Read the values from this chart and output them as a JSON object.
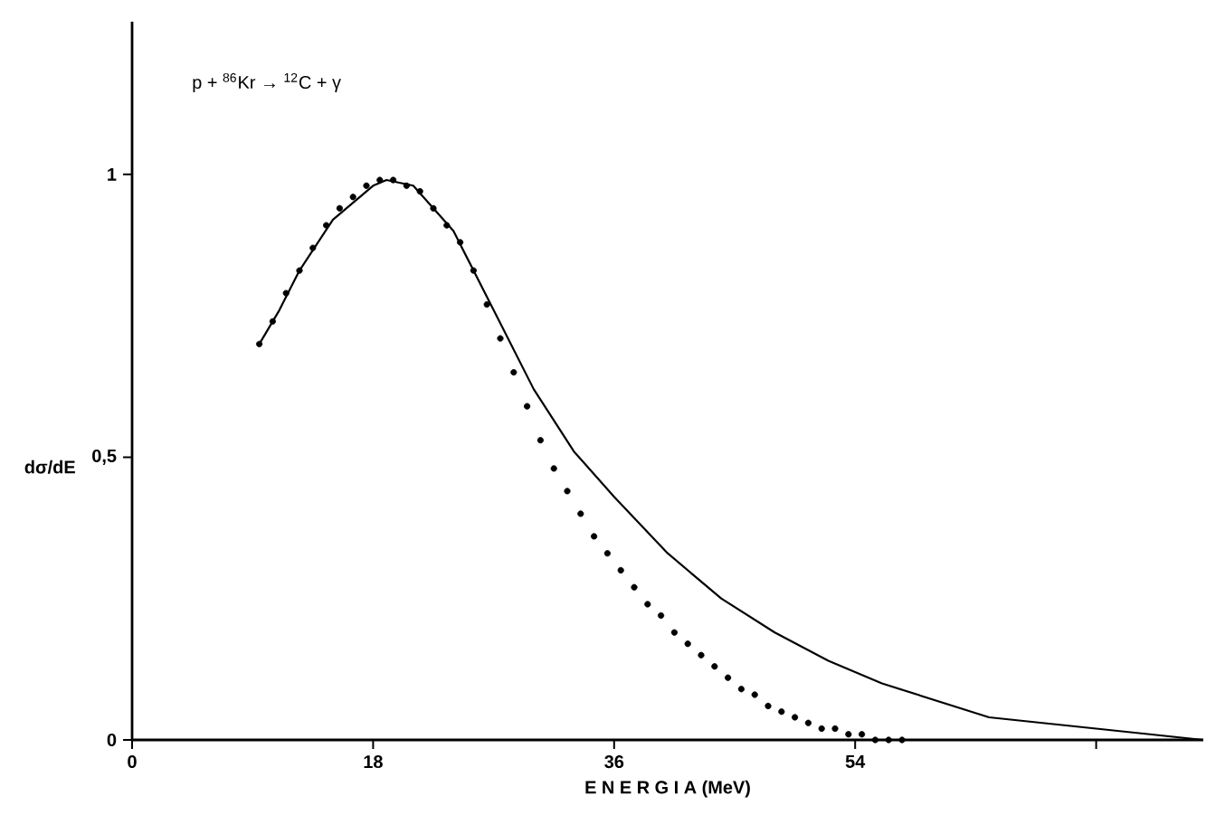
{
  "chart_data": {
    "type": "line",
    "title": "p + $^{86}$Kr → $^{12}$C + γ",
    "xlabel": "E N E R G I A   (MeV)",
    "ylabel": "dσ/dE",
    "xlim": [
      0,
      80
    ],
    "ylim": [
      0,
      1.27
    ],
    "xticks": [
      0,
      18,
      36,
      54,
      {
        "value": 72,
        "label": null
      }
    ],
    "yticks": [
      0,
      {
        "value": 0.5,
        "label": "0,5"
      },
      1
    ],
    "grid": false,
    "series": [
      {
        "type": "scatter",
        "marker": "circle",
        "color": "#000000",
        "x": [
          9.5,
          10.5,
          11.5,
          12.5,
          13.5,
          14.5,
          15.5,
          16.5,
          17.5,
          18.5,
          19.5,
          20.5,
          21.5,
          22.5,
          23.5,
          24.5,
          25.5,
          26.5,
          27.5,
          28.5,
          29.5,
          30.5,
          31.5,
          32.5,
          33.5,
          34.5,
          35.5,
          36.5,
          37.5,
          38.5,
          39.5,
          40.5,
          41.5,
          42.5,
          43.5,
          44.5,
          45.5,
          46.5,
          47.5,
          48.5,
          49.5,
          50.5,
          51.5,
          52.5,
          53.5,
          54.5,
          55.5,
          56.5,
          57.5
        ],
        "values": [
          0.7,
          0.74,
          0.79,
          0.83,
          0.87,
          0.91,
          0.94,
          0.96,
          0.98,
          0.99,
          0.99,
          0.98,
          0.97,
          0.94,
          0.91,
          0.88,
          0.83,
          0.77,
          0.71,
          0.65,
          0.59,
          0.53,
          0.48,
          0.44,
          0.4,
          0.36,
          0.33,
          0.3,
          0.27,
          0.24,
          0.22,
          0.19,
          0.17,
          0.15,
          0.13,
          0.11,
          0.09,
          0.08,
          0.06,
          0.05,
          0.04,
          0.03,
          0.02,
          0.02,
          0.01,
          0.01,
          0,
          0,
          0
        ]
      },
      {
        "marker": "none",
        "line_style": "solid",
        "color": "#000000",
        "x": [
          9.5,
          11,
          12.5,
          15,
          18,
          19,
          21,
          24,
          27,
          30,
          33,
          36,
          40,
          44,
          48,
          52,
          56,
          60,
          64,
          68,
          72,
          76,
          80
        ],
        "values": [
          0.7,
          0.76,
          0.83,
          0.92,
          0.98,
          0.99,
          0.98,
          0.9,
          0.76,
          0.62,
          0.51,
          0.43,
          0.33,
          0.25,
          0.19,
          0.14,
          0.1,
          0.07,
          0.04,
          0.03,
          0.02,
          0.01,
          0
        ]
      }
    ]
  }
}
